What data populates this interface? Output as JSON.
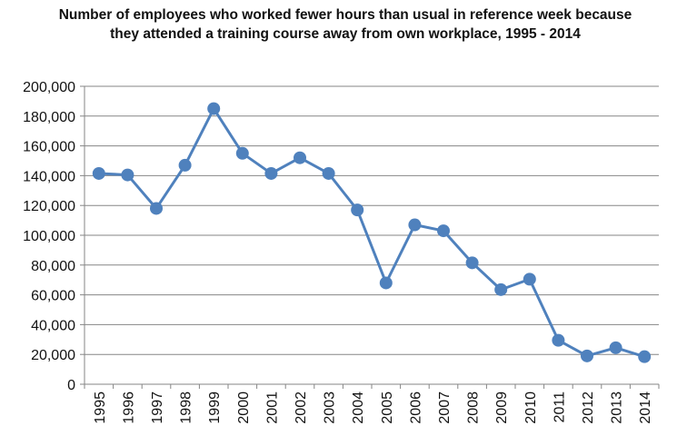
{
  "chart_data": {
    "type": "line",
    "title": "Number of employees who worked fewer hours than usual in reference week because they attended a training course away from own workplace, 1995 - 2014",
    "xlabel": "",
    "ylabel": "",
    "categories": [
      "1995",
      "1996",
      "1997",
      "1998",
      "1999",
      "2000",
      "2001",
      "2002",
      "2003",
      "2004",
      "2005",
      "2006",
      "2007",
      "2008",
      "2009",
      "2010",
      "2011",
      "2012",
      "2013",
      "2014"
    ],
    "series": [
      {
        "values": [
          141500,
          140500,
          118000,
          147000,
          185000,
          155000,
          141500,
          152000,
          141500,
          117000,
          68000,
          107000,
          103000,
          81500,
          63500,
          70500,
          29500,
          19000,
          24500,
          18500
        ]
      }
    ],
    "ylim": [
      0,
      200000
    ],
    "y_ticks": [
      "0",
      "20,000",
      "40,000",
      "60,000",
      "80,000",
      "100,000",
      "120,000",
      "140,000",
      "160,000",
      "180,000",
      "200,000"
    ],
    "y_tick_values": [
      0,
      20000,
      40000,
      60000,
      80000,
      100000,
      120000,
      140000,
      160000,
      180000,
      200000
    ],
    "grid": "horizontal",
    "legend": "none",
    "line_color": "#4F81BD",
    "grid_color": "#868686",
    "axis_color": "#868686"
  }
}
